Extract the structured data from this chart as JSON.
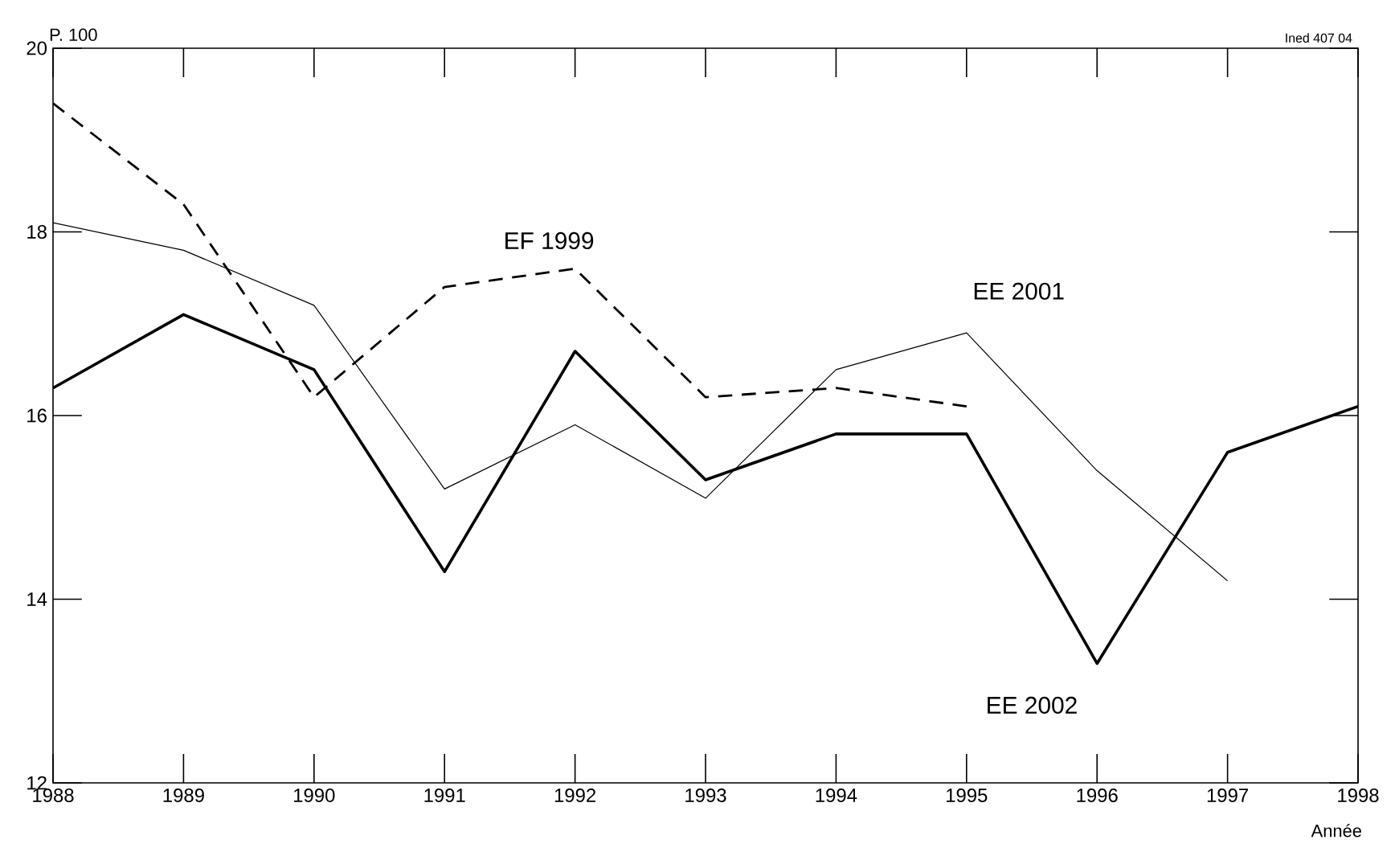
{
  "chart_data": {
    "type": "line",
    "xlabel": "Année",
    "ylabel": "P. 100",
    "annotations": [
      "Ined 407 04"
    ],
    "x": [
      1988,
      1989,
      1990,
      1991,
      1992,
      1993,
      1994,
      1995,
      1996,
      1997,
      1998
    ],
    "xlim": [
      1988,
      1998
    ],
    "xticks": [
      1988,
      1989,
      1990,
      1991,
      1992,
      1993,
      1994,
      1995,
      1996,
      1997,
      1998
    ],
    "ylim": [
      12,
      20
    ],
    "yticks": [
      12,
      14,
      16,
      18,
      20
    ],
    "grid": false,
    "legend": false,
    "marker": "none",
    "series": [
      {
        "name": "EF 1999",
        "color": "#000000",
        "line_style": "dashed",
        "values": [
          19.4,
          18.3,
          16.2,
          17.4,
          17.6,
          16.2,
          16.3,
          16.1,
          null,
          null,
          null
        ]
      },
      {
        "name": "EE 2001",
        "color": "#000000",
        "line_style": "solid",
        "values": [
          18.1,
          17.8,
          17.2,
          15.2,
          15.9,
          15.1,
          16.5,
          16.9,
          15.4,
          14.2,
          null
        ]
      },
      {
        "name": "EE 2002",
        "color": "#000000",
        "line_style": "solid",
        "values": [
          16.3,
          17.1,
          16.5,
          14.3,
          16.7,
          15.3,
          15.8,
          15.8,
          13.3,
          15.6,
          16.1
        ]
      }
    ]
  }
}
